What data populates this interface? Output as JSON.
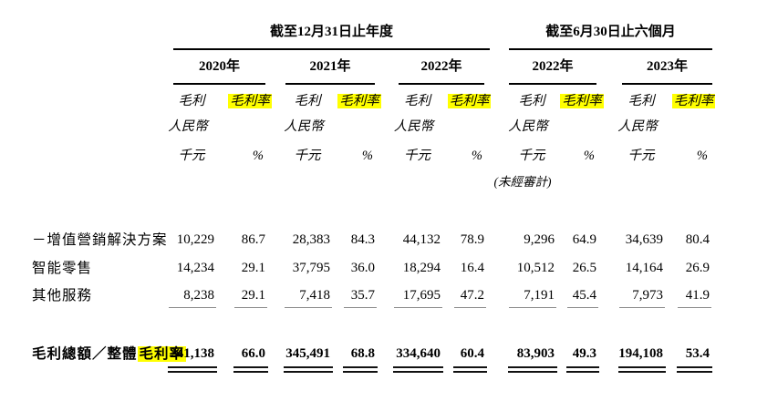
{
  "page": {
    "background": "#ffffff"
  },
  "table": {
    "highlight_color": "#ffff00",
    "groups": [
      {
        "title": "截至12月31日止年度"
      },
      {
        "title": "截至6月30日止六個月"
      }
    ],
    "years": [
      "2020年",
      "2021年",
      "2022年",
      "2022年",
      "2023年"
    ],
    "col_headers": {
      "gross_profit": "毛利",
      "gross_margin": "毛利率",
      "currency": "人民幣",
      "unit": "千元",
      "percent": "%",
      "unaudited_note": "(未經審計)"
    },
    "rows": [
      {
        "label": "－增值營銷解決方案",
        "values": [
          "10,229",
          "86.7",
          "28,383",
          "84.3",
          "44,132",
          "78.9",
          "9,296",
          "64.9",
          "34,639",
          "80.4"
        ]
      },
      {
        "label": "智能零售",
        "values": [
          "14,234",
          "29.1",
          "37,795",
          "36.0",
          "18,294",
          "16.4",
          "10,512",
          "26.5",
          "14,164",
          "26.9"
        ]
      },
      {
        "label": "其他服務",
        "values": [
          "8,238",
          "29.1",
          "7,418",
          "35.7",
          "17,695",
          "47.2",
          "7,191",
          "45.4",
          "7,973",
          "41.9"
        ]
      }
    ],
    "total": {
      "label": "毛利總額／整體",
      "label_highlight": "毛利率",
      "values": [
        "241,138",
        "66.0",
        "345,491",
        "68.8",
        "334,640",
        "60.4",
        "83,903",
        "49.3",
        "194,108",
        "53.4"
      ]
    }
  }
}
